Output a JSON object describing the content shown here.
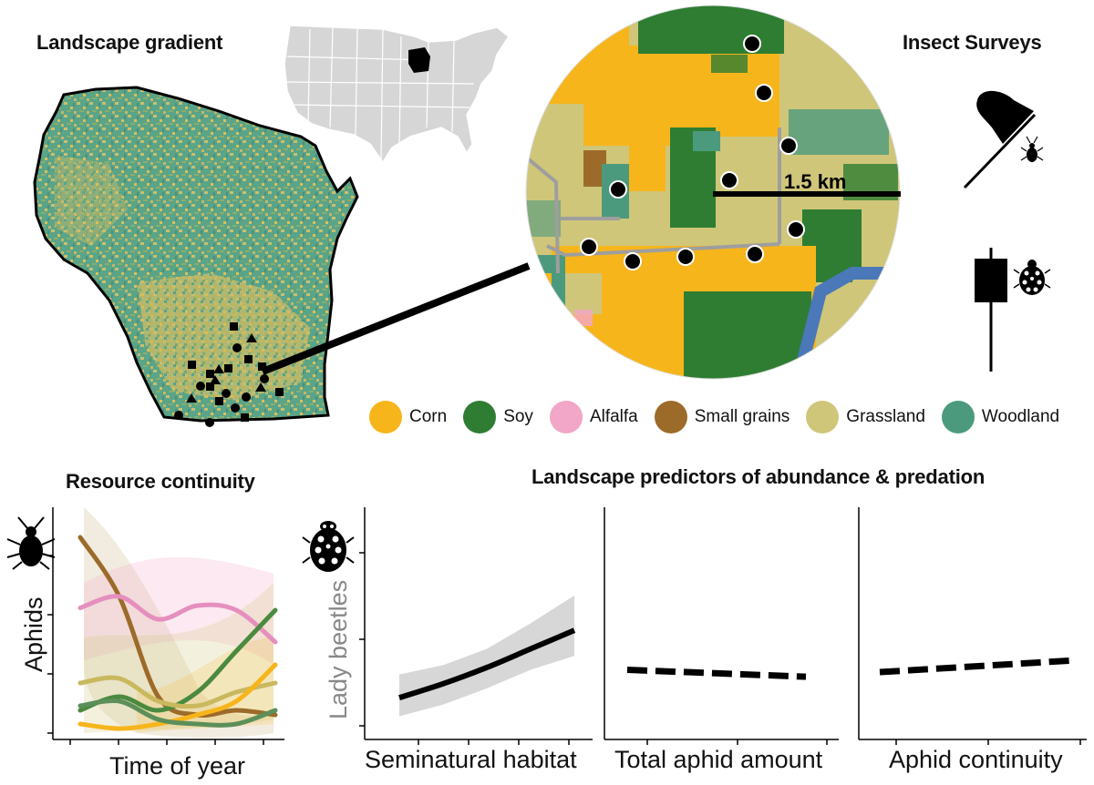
{
  "titles": {
    "landscape_gradient": "Landscape gradient",
    "insect_surveys": "Insect Surveys",
    "resource_continuity": "Resource continuity",
    "landscape_predictors": "Landscape predictors of abundance & predation"
  },
  "scale_bar_label": "1.5 km",
  "legend": [
    {
      "label": "Corn",
      "color": "#f7b51c"
    },
    {
      "label": "Soy",
      "color": "#2e7d32"
    },
    {
      "label": "Alfalfa",
      "color": "#f2a6c8"
    },
    {
      "label": "Small grains",
      "color": "#9c6b2a"
    },
    {
      "label": "Grassland",
      "color": "#cfc67a"
    },
    {
      "label": "Woodland",
      "color": "#4c9a7d"
    }
  ],
  "colors": {
    "corn": "#f7b51c",
    "soy": "#2e7d32",
    "alfalfa": "#f2a6c8",
    "small_grains": "#9c6b2a",
    "grassland": "#cfc67a",
    "woodland": "#4c9a7d",
    "water": "#4a78b8",
    "road": "#9e9e9e",
    "state_gray": "#d6d6d6"
  },
  "icons": [
    "aphid-icon",
    "lady-beetle-icon",
    "sweep-net-icon",
    "boxplot-icon"
  ],
  "chart_data": [
    {
      "type": "line",
      "title": "Resource continuity",
      "xlabel": "Time of year",
      "ylabel": "Aphids",
      "x": [
        0,
        0.2,
        0.4,
        0.6,
        0.8,
        1.0
      ],
      "series": [
        {
          "color": "#9c6b2a",
          "values": [
            0.88,
            0.62,
            0.18,
            0.1,
            0.12,
            0.1
          ]
        },
        {
          "color": "#e58fbf",
          "values": [
            0.57,
            0.62,
            0.52,
            0.58,
            0.56,
            0.42
          ]
        },
        {
          "color": "#4a8a3f",
          "values": [
            0.12,
            0.18,
            0.12,
            0.2,
            0.38,
            0.56
          ]
        },
        {
          "color": "#c9b85e",
          "values": [
            0.24,
            0.26,
            0.16,
            0.14,
            0.2,
            0.24
          ]
        },
        {
          "color": "#f7b51c",
          "values": [
            0.06,
            0.04,
            0.06,
            0.1,
            0.16,
            0.32
          ]
        },
        {
          "color": "#5c8f5a",
          "values": [
            0.14,
            0.16,
            0.08,
            0.06,
            0.06,
            0.12
          ]
        }
      ]
    },
    {
      "type": "line",
      "title": "Landscape predictors of abundance & predation",
      "xlabel": "Seminatural habitat",
      "ylabel": "Lady beetles",
      "x": [
        0,
        0.25,
        0.5,
        0.75,
        1.0
      ],
      "series": [
        {
          "values": [
            0.18,
            0.24,
            0.31,
            0.39,
            0.47
          ],
          "lower": [
            0.1,
            0.15,
            0.22,
            0.3,
            0.36
          ],
          "upper": [
            0.28,
            0.32,
            0.39,
            0.5,
            0.62
          ],
          "style": "solid"
        }
      ]
    },
    {
      "type": "line",
      "xlabel": "Total aphid amount",
      "x": [
        0,
        1.0
      ],
      "series": [
        {
          "values": [
            0.3,
            0.27
          ],
          "style": "dashed"
        }
      ]
    },
    {
      "type": "line",
      "xlabel": "Aphid continuity",
      "x": [
        0,
        1.0
      ],
      "series": [
        {
          "values": [
            0.29,
            0.34
          ],
          "style": "dashed"
        }
      ]
    }
  ]
}
